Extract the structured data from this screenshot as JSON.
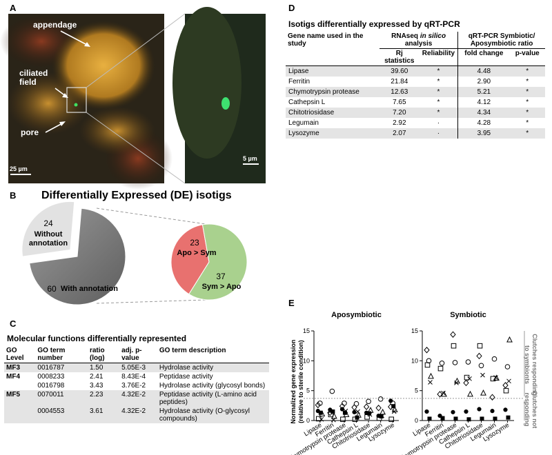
{
  "panel_a": {
    "label": "A",
    "annotations": [
      "appendage",
      "ciliated field",
      "pore"
    ],
    "scale_bars": [
      "25 µm",
      "5 µm"
    ]
  },
  "panel_b": {
    "label": "B",
    "title": "Differentially Expressed (DE) isotigs",
    "pie_outer": {
      "values": [
        24,
        60
      ],
      "labels": [
        "Without annotation",
        "With annotation"
      ],
      "colors": [
        "#e2e2e2",
        "#808080"
      ]
    },
    "pie_inner": {
      "values": [
        23,
        37
      ],
      "labels": [
        "Apo > Sym",
        "Sym > Apo"
      ],
      "colors": [
        "#e8716f",
        "#a9d18e"
      ]
    }
  },
  "panel_c": {
    "label": "C",
    "title": "Molecular functions differentially represented",
    "header": [
      "GO Level",
      "GO term number",
      "ratio (log)",
      "adj. p-value",
      "GO term description"
    ],
    "groups": [
      {
        "level": "MF3",
        "rows": [
          [
            "0016787",
            "1.50",
            "5.05E-3",
            "Hydrolase activity"
          ]
        ]
      },
      {
        "level": "MF4",
        "rows": [
          [
            "0008233",
            "2.41",
            "8.43E-4",
            "Peptidase activity"
          ],
          [
            "0016798",
            "3.43",
            "3.76E-2",
            "Hydrolase activity (glycosyl bonds)"
          ]
        ]
      },
      {
        "level": "MF5",
        "rows": [
          [
            "0070011",
            "2.23",
            "4.32E-2",
            "Peptidase activity (L-amino acid peptides)"
          ],
          [
            "0004553",
            "3.61",
            "4.32E-2",
            "Hydrolase activity (O-glycosyl compounds)"
          ]
        ]
      }
    ]
  },
  "panel_d": {
    "label": "D",
    "title": "Isotigs differentially expressed by qRT-PCR",
    "header_gene": "Gene name used in the study",
    "header_rnaseq": {
      "pre": "RNAseq",
      "italic": "in silico",
      "post": "analysis"
    },
    "header_qpcr": "qRT-PCR Symbiotic/ Aposymbiotic ratio",
    "subheader": [
      "Rj statistics",
      "Reliability",
      "fold change",
      "p-value"
    ],
    "rows": [
      [
        "Lipase",
        "39.60",
        "*",
        "4.48",
        "*"
      ],
      [
        "Ferritin",
        "21.84",
        "*",
        "2.90",
        "*"
      ],
      [
        "Chymotrypsin protease",
        "12.63",
        "*",
        "5.21",
        "*"
      ],
      [
        "Cathepsin L",
        "7.65",
        "*",
        "4.12",
        "*"
      ],
      [
        "Chitotriosidase",
        "7.20",
        "*",
        "4.34",
        "*"
      ],
      [
        "Legumain",
        "2.92",
        "·",
        "4.28",
        "*"
      ],
      [
        "Lysozyme",
        "2.07",
        "·",
        "3.95",
        "*"
      ]
    ]
  },
  "panel_e": {
    "label": "E",
    "type": "scatter",
    "y_label": [
      "Normalized gene expression",
      "(relative to sterile condition)"
    ],
    "categories": [
      "Lipase",
      "Ferritin",
      "Chymotrypsin protease",
      "Cathepsin L",
      "Chitotriosidase",
      "Legumain",
      "Lysozyme"
    ],
    "ylim": [
      0,
      15
    ],
    "yticks": [
      0,
      5,
      10,
      15
    ],
    "threshold": 3.7,
    "side_labels": [
      [
        "Clutches responding",
        "to symbionts"
      ],
      [
        "Clutches not",
        "responding"
      ]
    ],
    "charts": [
      {
        "title": "Aposymbiotic",
        "series": [
          {
            "marker": "circle-open",
            "values": [
              2.9,
              4.9,
              2.9,
              2.8,
              3.2,
              3.6,
              2.9
            ]
          },
          {
            "marker": "diamond-open",
            "values": [
              2.6,
              1.3,
              2.4,
              2.2,
              2.3,
              2.1,
              2.3
            ]
          },
          {
            "marker": "triangle-open",
            "values": [
              1.1,
              0.7,
              1.0,
              0.9,
              1.7,
              1.4,
              1.8
            ]
          },
          {
            "marker": "cross",
            "values": [
              0.2,
              0.1,
              1.6,
              1.5,
              1.0,
              0.8,
              1.5
            ]
          },
          {
            "marker": "square-open",
            "values": [
              0.3,
              1.0,
              0.2,
              0.2,
              0.6,
              0.4,
              0.2
            ]
          },
          {
            "marker": "circle-filled",
            "values": [
              1.6,
              1.8,
              1.9,
              1.4,
              1.3,
              0.8,
              3.3
            ]
          },
          {
            "marker": "square-filled",
            "values": [
              1.3,
              1.5,
              1.3,
              0.5,
              1.2,
              0.7,
              2.4
            ]
          }
        ]
      },
      {
        "title": "Symbiotic",
        "series": [
          {
            "marker": "circle-open",
            "values": [
              10.0,
              9.6,
              9.7,
              9.8,
              9.2,
              10.3,
              9.0
            ]
          },
          {
            "marker": "diamond-open",
            "values": [
              11.8,
              4.4,
              14.4,
              6.3,
              10.8,
              3.9,
              5.9
            ]
          },
          {
            "marker": "triangle-open",
            "values": [
              7.4,
              4.4,
              6.6,
              4.4,
              4.6,
              7.1,
              13.5
            ]
          },
          {
            "marker": "cross",
            "values": [
              6.4,
              4.6,
              6.3,
              7.0,
              7.6,
              7.2,
              6.6
            ]
          },
          {
            "marker": "square-open",
            "values": [
              9.3,
              8.7,
              12.5,
              7.2,
              12.5,
              7.0,
              5.0
            ]
          },
          {
            "marker": "circle-filled",
            "values": [
              1.5,
              0.8,
              1.4,
              1.5,
              1.9,
              1.6,
              1.8
            ]
          },
          {
            "marker": "square-filled",
            "values": [
              0.3,
              0.4,
              0.3,
              0.2,
              0.3,
              0.3,
              0.5
            ]
          }
        ]
      }
    ]
  }
}
